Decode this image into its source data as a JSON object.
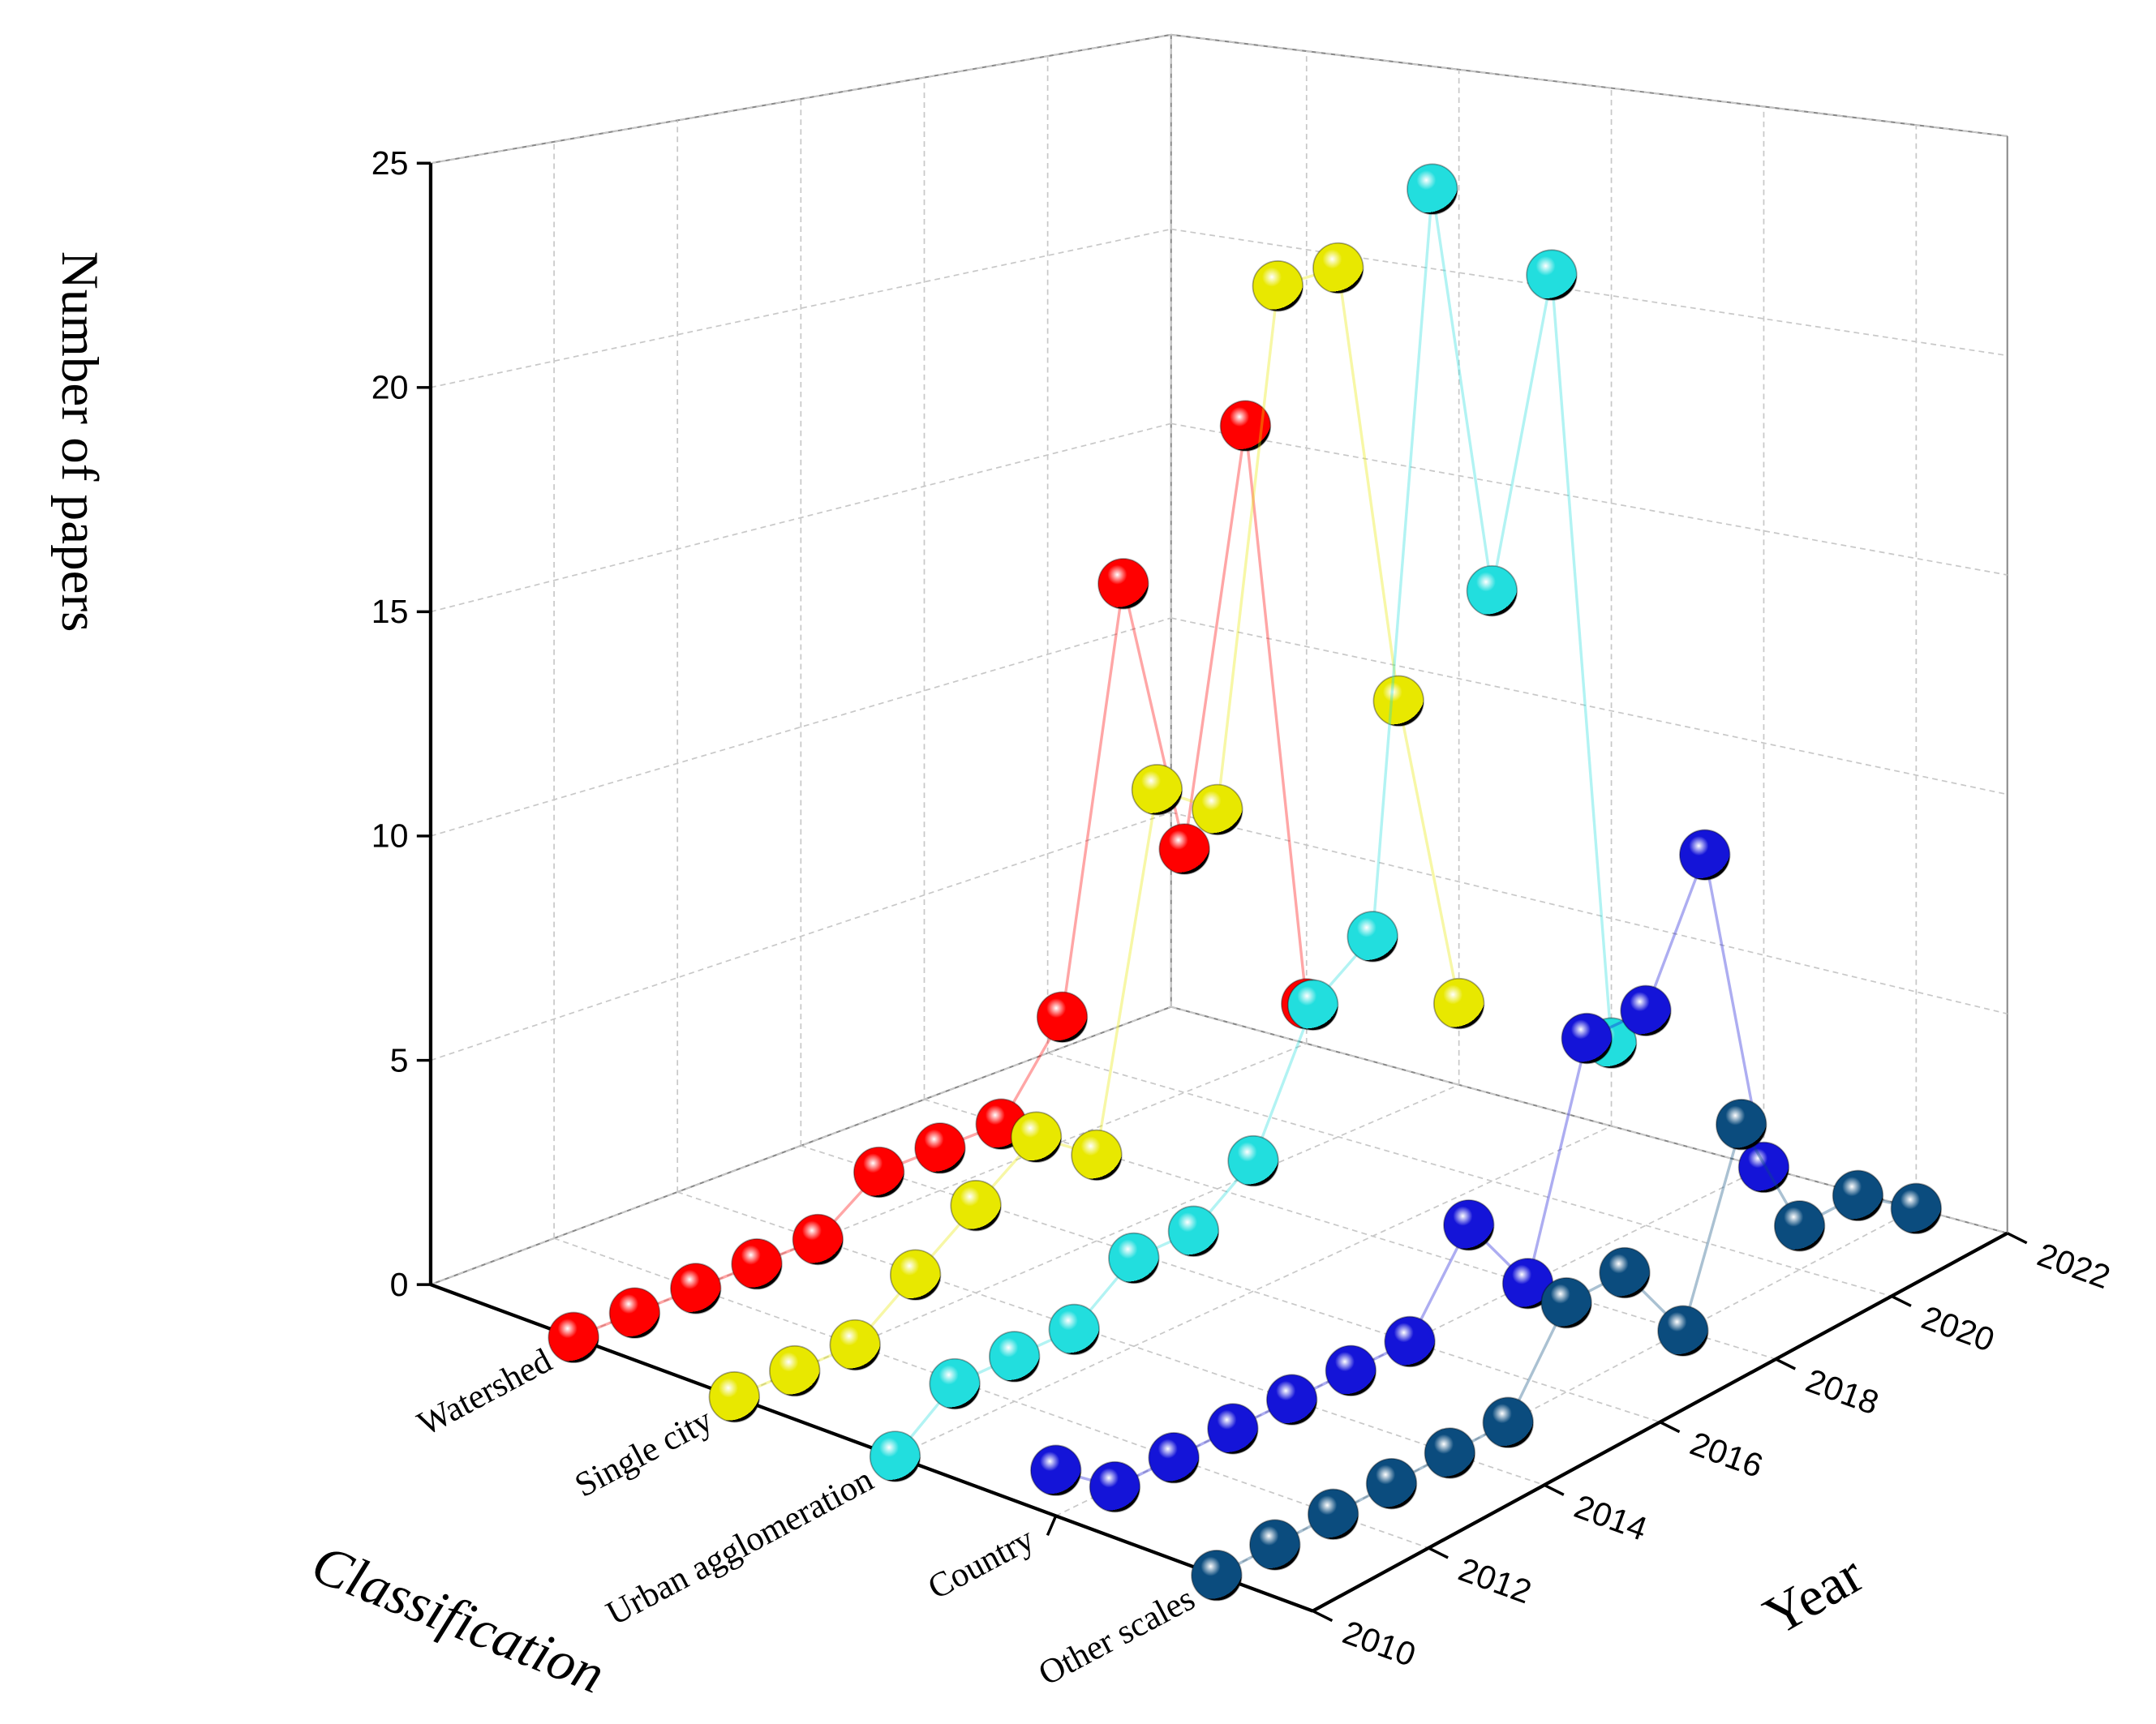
{
  "chart_data": {
    "type": "line3d",
    "y_label": "Number of papers",
    "x_label": "Year",
    "category_label": "Classification",
    "x": [
      2010,
      2011,
      2012,
      2013,
      2014,
      2015,
      2016,
      2017,
      2018,
      2019,
      2020,
      2021,
      2022
    ],
    "xlim": [
      2010,
      2022
    ],
    "xticks": [
      2010,
      2012,
      2014,
      2016,
      2018,
      2020,
      2022
    ],
    "ylim": [
      0,
      25
    ],
    "yticks": [
      0,
      5,
      10,
      15,
      20,
      25
    ],
    "grid": true,
    "series": [
      {
        "name": "Watershed",
        "color": "#ff0000",
        "values": [
          0,
          0,
          0,
          0,
          0,
          1,
          1,
          1,
          3,
          13,
          6,
          16,
          1
        ]
      },
      {
        "name": "Single city",
        "color": "#e8e800",
        "values": [
          0,
          0,
          0,
          1,
          2,
          3,
          2,
          10,
          9,
          21,
          21,
          10,
          2
        ]
      },
      {
        "name": "Urban agglomeration",
        "color": "#22dede",
        "values": [
          0,
          1,
          1,
          1,
          2,
          2,
          3,
          6,
          7,
          24,
          14,
          21,
          2
        ]
      },
      {
        "name": "Country",
        "color": "#1414d8",
        "values": [
          1,
          0,
          0,
          0,
          0,
          0,
          0,
          2,
          0,
          5,
          5,
          8,
          0
        ]
      },
      {
        "name": "Other scales",
        "color": "#0b4c7e",
        "values": [
          0,
          0,
          0,
          0,
          0,
          0,
          2,
          2,
          0,
          4,
          1,
          1,
          0
        ]
      }
    ]
  }
}
